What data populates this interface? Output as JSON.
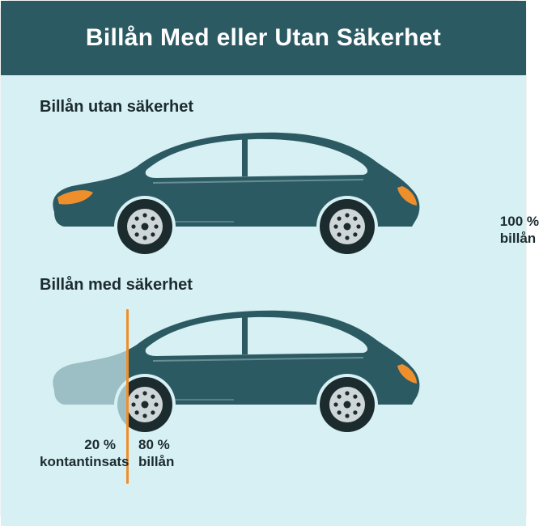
{
  "page": {
    "title": "Billån Med eller Utan Säkerhet",
    "header_bg": "#2c5a63",
    "content_bg": "#d7f0f4",
    "text_color": "#1b2b2e",
    "divider_color": "#ef8f2c"
  },
  "section1": {
    "title": "Billån utan säkerhet",
    "label_line1": "100 %",
    "label_line2": "billån"
  },
  "section2": {
    "title": "Billån med säkerhet",
    "split_percent": 20,
    "left_label_line1": "20 %",
    "left_label_line2": "kontantinsats",
    "right_label_line1": "80 %",
    "right_label_line2": "billån"
  },
  "car": {
    "body_color": "#2c5a63",
    "body_faded_color": "#9bbfc4",
    "headlight_color": "#ef8f2c",
    "taillight_color": "#ef8f2c",
    "window_color": "#d7f0f4",
    "wheel_outer": "#1b2b2e",
    "wheel_hub": "#cfd6d8",
    "wheel_hub_faded": "#cfd6d8"
  }
}
